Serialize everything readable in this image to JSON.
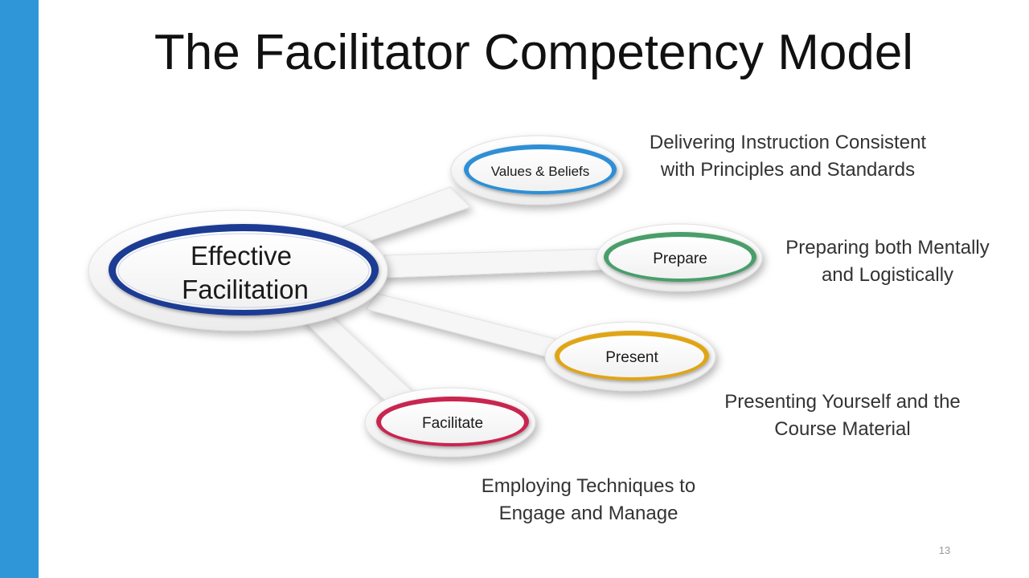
{
  "slide": {
    "title": "The Facilitator Competency Model",
    "page_number": "13"
  },
  "diagram": {
    "center": {
      "label_line1": "Effective",
      "label_line2": "Facilitation",
      "color": "#1b3a93"
    },
    "nodes": [
      {
        "label": "Values & Beliefs",
        "color": "#2f8fd6",
        "description": "Delivering Instruction Consistent\nwith Principles and Standards"
      },
      {
        "label": "Prepare",
        "color": "#4a9e6a",
        "description": "Preparing both Mentally\nand Logistically"
      },
      {
        "label": "Present",
        "color": "#e0a514",
        "description": "Presenting Yourself and the\nCourse Material"
      },
      {
        "label": "Facilitate",
        "color": "#c8284f",
        "description": "Employing Techniques to\nEngage and Manage"
      }
    ]
  },
  "colors": {
    "side_bar": "#2f97d8",
    "center_ring": "#1b3a93"
  }
}
